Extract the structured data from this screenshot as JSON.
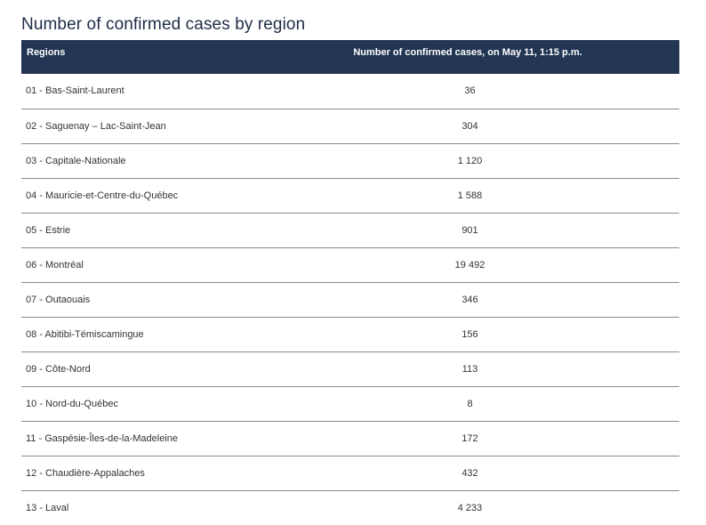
{
  "title": "Number of confirmed cases by region",
  "table": {
    "headers": {
      "region": "Regions",
      "cases": "Number of confirmed cases, on May 11, 1:15 p.m."
    },
    "rows": [
      {
        "region": "01 - Bas-Saint-Laurent",
        "cases": "36"
      },
      {
        "region": "02 - Saguenay – Lac-Saint-Jean",
        "cases": "304"
      },
      {
        "region": "03 - Capitale-Nationale",
        "cases": "1 120"
      },
      {
        "region": "04 - Mauricie-et-Centre-du-Québec",
        "cases": "1 588"
      },
      {
        "region": "05 - Estrie",
        "cases": "901"
      },
      {
        "region": "06 - Montréal",
        "cases": "19 492"
      },
      {
        "region": "07 - Outaouais",
        "cases": "346"
      },
      {
        "region": "08 - Abitibi-Témiscamingue",
        "cases": "156"
      },
      {
        "region": "09 - Côte-Nord",
        "cases": "113"
      },
      {
        "region": "10 - Nord-du-Québec",
        "cases": "8"
      },
      {
        "region": "11 - Gaspésie-Îles-de-la-Madeleine",
        "cases": "172"
      },
      {
        "region": "12 - Chaudière-Appalaches",
        "cases": "432"
      },
      {
        "region": "13 - Laval",
        "cases": "4 233"
      }
    ]
  },
  "colors": {
    "header_background": "#223654",
    "title": "#1f2b48",
    "row_divider": "#8a8a8a"
  }
}
